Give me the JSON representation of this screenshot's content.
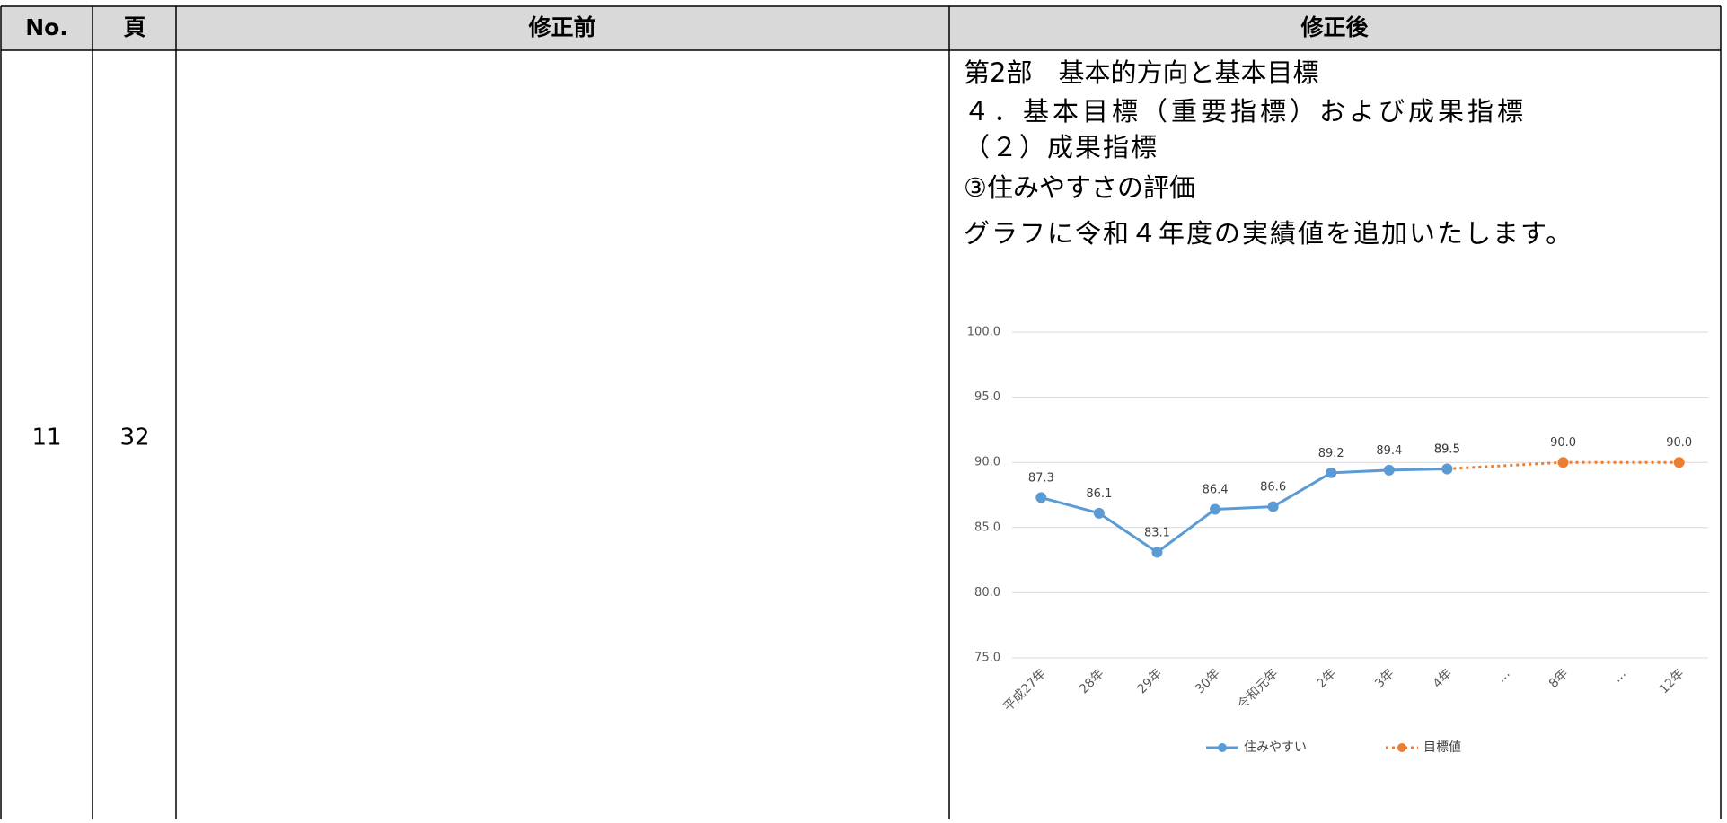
{
  "table": {
    "header": [
      "No.",
      "頁",
      "修正前",
      "修正後"
    ],
    "rows": [
      [
        "11",
        "32"
      ]
    ]
  },
  "after_text": [
    "第2部　基本的方向と基本目標",
    "４．基本目標（重要指標）および成果指標",
    "（２）成果指標",
    "③住みやすさの評価",
    "グラフに令和４年度の実績値を追加いたします。"
  ],
  "chart_data": {
    "type": "line",
    "categories": [
      "平成27年",
      "28年",
      "29年",
      "30年",
      "令和元年",
      "2年",
      "3年",
      "4年",
      "…",
      "8年",
      "…",
      "12年"
    ],
    "series": [
      {
        "name": "目標値",
        "color": "#ed7d31",
        "dashed": true,
        "values": [
          null,
          null,
          null,
          null,
          null,
          null,
          null,
          89.5,
          null,
          90.0,
          null,
          90.0
        ],
        "value_labels": [
          null,
          null,
          null,
          null,
          null,
          null,
          null,
          "89.5",
          null,
          "90.0",
          null,
          "90.0"
        ]
      },
      {
        "name": "住みやすい",
        "color": "#5b9bd5",
        "dashed": false,
        "values": [
          87.3,
          86.1,
          83.1,
          86.4,
          86.6,
          89.2,
          89.4,
          89.5,
          null,
          null,
          null,
          null
        ]
      }
    ],
    "connect_gaps": true,
    "ylim": [
      75,
      100
    ],
    "yticks": [
      {
        "value": 75,
        "label": "75.0"
      },
      {
        "value": 80,
        "label": "80.0"
      },
      {
        "value": 85,
        "label": "85.0"
      },
      {
        "value": 90,
        "label": "90.0"
      },
      {
        "value": 95,
        "label": "95.0"
      },
      {
        "value": 100,
        "label": "100.0"
      }
    ],
    "grid": true,
    "legend": "bottom"
  }
}
